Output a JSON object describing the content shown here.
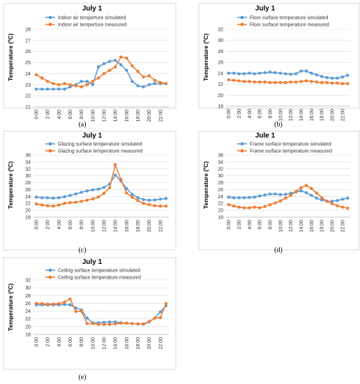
{
  "colors": {
    "simulated": "#5B9BD5",
    "measured": "#ED7D31",
    "grid": "#d9d9d9"
  },
  "chart_data": [
    {
      "type": "line",
      "title": "July 1",
      "sublabel": "(a)",
      "ylabel": "Temperature (ºC)",
      "xlabel": "",
      "ylim": [
        21,
        28
      ],
      "yticks": [
        21,
        22,
        23,
        24,
        25,
        26,
        27,
        28
      ],
      "categories": [
        "0:00",
        "1:00",
        "2:00",
        "3:00",
        "4:00",
        "5:00",
        "6:00",
        "7:00",
        "8:00",
        "9:00",
        "10:00",
        "11:00",
        "12:00",
        "13:00",
        "14:00",
        "15:00",
        "16:00",
        "17:00",
        "18:00",
        "19:00",
        "20:00",
        "21:00",
        "22:00",
        "23:00"
      ],
      "xtick_labels": [
        "0:00",
        "2:00",
        "4:00",
        "6:00",
        "8:00",
        "10:00",
        "12:00",
        "14:00",
        "16:00",
        "18:00",
        "20:00",
        "22:00"
      ],
      "grid": true,
      "legend": "top-left",
      "series": [
        {
          "name": "Indoor air temperture simulated",
          "values": [
            22.6,
            22.6,
            22.6,
            22.6,
            22.6,
            22.6,
            22.8,
            23.0,
            23.3,
            23.3,
            23.0,
            24.6,
            24.9,
            25.1,
            25.2,
            24.8,
            24.3,
            23.3,
            22.9,
            22.8,
            23.0,
            23.1,
            23.1,
            23.1
          ]
        },
        {
          "name": "Indoor air temperture measured",
          "values": [
            23.9,
            23.6,
            23.3,
            23.1,
            23.0,
            23.1,
            23.0,
            22.9,
            22.8,
            23.0,
            23.3,
            23.6,
            24.0,
            24.3,
            24.6,
            25.5,
            25.4,
            24.7,
            24.2,
            23.7,
            23.8,
            23.4,
            23.2,
            23.1
          ]
        }
      ]
    },
    {
      "type": "line",
      "title": "July 1",
      "sublabel": "(b)",
      "ylabel": "Temperature (ºC)",
      "xlabel": "",
      "ylim": [
        18,
        32
      ],
      "yticks": [
        18,
        20,
        22,
        24,
        26,
        28,
        30,
        32
      ],
      "categories": [
        "0:00",
        "1:00",
        "2:00",
        "3:00",
        "4:00",
        "5:00",
        "6:00",
        "7:00",
        "8:00",
        "9:00",
        "10:00",
        "11:00",
        "12:00",
        "13:00",
        "14:00",
        "15:00",
        "16:00",
        "17:00",
        "18:00",
        "19:00",
        "20:00",
        "21:00",
        "22:00",
        "23:00"
      ],
      "xtick_labels": [
        "0:00",
        "2:00",
        "4:00",
        "6:00",
        "8:00",
        "10:00",
        "12:00",
        "14:00",
        "16:00",
        "18:00",
        "20:00",
        "22:00"
      ],
      "grid": true,
      "legend": "top-left",
      "series": [
        {
          "name": "Floor surface temperature simulated",
          "values": [
            24.0,
            24.0,
            23.9,
            23.9,
            24.0,
            23.9,
            24.0,
            24.1,
            24.2,
            24.1,
            24.0,
            23.9,
            23.8,
            23.9,
            24.4,
            24.4,
            24.0,
            23.7,
            23.4,
            23.2,
            23.1,
            23.1,
            23.3,
            23.6
          ]
        },
        {
          "name": "Floor surface temperature measured",
          "values": [
            22.8,
            22.7,
            22.6,
            22.5,
            22.5,
            22.4,
            22.4,
            22.4,
            22.3,
            22.3,
            22.3,
            22.3,
            22.4,
            22.4,
            22.5,
            22.6,
            22.5,
            22.4,
            22.3,
            22.3,
            22.2,
            22.2,
            22.1,
            22.1
          ]
        }
      ]
    },
    {
      "type": "line",
      "title": "July 1",
      "sublabel": "(c)",
      "ylabel": "Temperature (ºC)",
      "xlabel": "",
      "ylim": [
        18,
        36
      ],
      "yticks": [
        18,
        20,
        22,
        24,
        26,
        28,
        30,
        32,
        34,
        36
      ],
      "categories": [
        "0:00",
        "1:00",
        "2:00",
        "3:00",
        "4:00",
        "5:00",
        "6:00",
        "7:00",
        "8:00",
        "9:00",
        "10:00",
        "11:00",
        "12:00",
        "13:00",
        "14:00",
        "15:00",
        "16:00",
        "17:00",
        "18:00",
        "19:00",
        "20:00",
        "21:00",
        "22:00",
        "23:00"
      ],
      "xtick_labels": [
        "0:00",
        "2:00",
        "4:00",
        "6:00",
        "8:00",
        "10:00",
        "12:00",
        "14:00",
        "16:00",
        "18:00",
        "20:00",
        "22:00"
      ],
      "grid": true,
      "legend": "top-left",
      "series": [
        {
          "name": "Glazing surface temperature simulated",
          "values": [
            23.8,
            23.6,
            23.6,
            23.5,
            23.6,
            23.9,
            24.3,
            24.7,
            25.2,
            25.6,
            25.9,
            26.1,
            26.6,
            27.6,
            30.2,
            28.5,
            26.3,
            24.6,
            23.6,
            23.1,
            22.9,
            23.0,
            23.2,
            23.4
          ]
        },
        {
          "name": "Glazing surface temperature measured",
          "values": [
            21.8,
            21.5,
            21.3,
            21.2,
            21.5,
            22.0,
            22.2,
            22.3,
            22.6,
            22.9,
            23.3,
            23.8,
            24.9,
            26.5,
            33.2,
            28.9,
            25.0,
            23.8,
            22.8,
            22.0,
            21.6,
            21.3,
            21.2,
            21.2
          ]
        }
      ]
    },
    {
      "type": "line",
      "title": "Jule 1",
      "sublabel": "(d)",
      "ylabel": "Temperature (ºC)",
      "xlabel": "",
      "ylim": [
        18,
        36
      ],
      "yticks": [
        18,
        20,
        22,
        24,
        26,
        28,
        30,
        32,
        34,
        36
      ],
      "categories": [
        "0:00",
        "1:00",
        "2:00",
        "3:00",
        "4:00",
        "5:00",
        "6:00",
        "7:00",
        "8:00",
        "9:00",
        "10:00",
        "11:00",
        "12:00",
        "13:00",
        "14:00",
        "15:00",
        "16:00",
        "17:00",
        "18:00",
        "19:00",
        "20:00",
        "21:00",
        "22:00",
        "23:00"
      ],
      "xtick_labels": [
        "0:00",
        "2:00",
        "4:00",
        "6:00",
        "8:00",
        "10:00",
        "12:00",
        "14:00",
        "16:00",
        "18:00",
        "20:00",
        "22:00"
      ],
      "grid": true,
      "legend": "top-left",
      "series": [
        {
          "name": "Frame surface temperature simulated",
          "values": [
            23.8,
            23.6,
            23.6,
            23.6,
            23.7,
            23.8,
            24.1,
            24.4,
            24.7,
            24.7,
            24.5,
            24.6,
            24.9,
            25.3,
            25.6,
            25.1,
            24.3,
            23.5,
            23.0,
            22.6,
            22.6,
            22.8,
            23.2,
            23.5
          ]
        },
        {
          "name": "Frame surface temperature measured",
          "values": [
            21.6,
            21.2,
            20.9,
            20.7,
            20.7,
            20.9,
            20.7,
            21.1,
            21.6,
            22.1,
            22.7,
            23.5,
            24.3,
            25.4,
            26.5,
            27.2,
            26.3,
            25.0,
            23.6,
            22.6,
            21.9,
            21.3,
            20.9,
            20.6
          ]
        }
      ]
    },
    {
      "type": "line",
      "title": "July 1",
      "sublabel": "(e)",
      "ylabel": "Temperature (ºC)",
      "xlabel": "",
      "ylim": [
        18,
        32
      ],
      "yticks": [
        18,
        20,
        22,
        24,
        26,
        28,
        30,
        32
      ],
      "categories": [
        "0:00",
        "1:00",
        "2:00",
        "3:00",
        "4:00",
        "5:00",
        "6:00",
        "7:00",
        "8:00",
        "9:00",
        "10:00",
        "11:00",
        "12:00",
        "13:00",
        "14:00",
        "15:00",
        "16:00",
        "17:00",
        "18:00",
        "19:00",
        "20:00",
        "21:00",
        "22:00",
        "23:00"
      ],
      "xtick_labels": [
        "0:00",
        "2:00",
        "4:00",
        "6:00",
        "8:00",
        "10:00",
        "12:00",
        "14:00",
        "16:00",
        "18:00",
        "20:00",
        "22:00"
      ],
      "grid": true,
      "legend": "top-left",
      "series": [
        {
          "name": "Ceiling surface temperature simulated",
          "values": [
            25.6,
            25.6,
            25.6,
            25.6,
            25.6,
            25.7,
            25.6,
            24.8,
            24.3,
            22.2,
            21.0,
            21.0,
            21.1,
            21.2,
            21.2,
            21.0,
            20.9,
            20.8,
            20.7,
            20.6,
            21.2,
            22.2,
            23.8,
            25.4
          ]
        },
        {
          "name": "Ceiling surface temperature measured",
          "values": [
            26.0,
            25.9,
            25.8,
            25.8,
            25.9,
            26.3,
            27.1,
            23.9,
            24.0,
            20.8,
            20.8,
            20.6,
            20.6,
            20.6,
            20.7,
            20.9,
            20.9,
            20.8,
            20.7,
            20.7,
            21.3,
            22.2,
            22.3,
            26.0
          ]
        }
      ]
    }
  ]
}
